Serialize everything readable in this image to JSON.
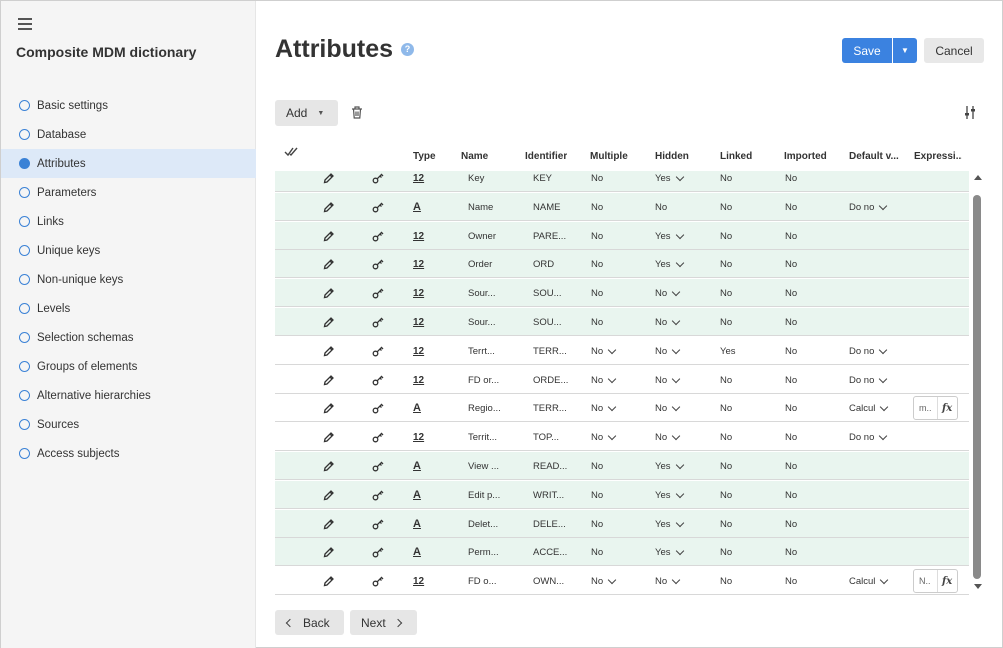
{
  "app": {
    "title": "Composite MDM dictionary"
  },
  "sidebar": {
    "items": [
      {
        "label": "Basic settings",
        "active": false
      },
      {
        "label": "Database",
        "active": false
      },
      {
        "label": "Attributes",
        "active": true
      },
      {
        "label": "Parameters",
        "active": false
      },
      {
        "label": "Links",
        "active": false
      },
      {
        "label": "Unique keys",
        "active": false
      },
      {
        "label": "Non-unique keys",
        "active": false
      },
      {
        "label": "Levels",
        "active": false
      },
      {
        "label": "Selection schemas",
        "active": false
      },
      {
        "label": "Groups of elements",
        "active": false
      },
      {
        "label": "Alternative hierarchies",
        "active": false
      },
      {
        "label": "Sources",
        "active": false
      },
      {
        "label": "Access subjects",
        "active": false
      }
    ]
  },
  "header": {
    "title": "Attributes",
    "help": "?",
    "save_label": "Save",
    "cancel_label": "Cancel"
  },
  "toolbar": {
    "add_label": "Add"
  },
  "grid": {
    "columns": [
      "Type",
      "Name",
      "Identifier",
      "Multiple",
      "Hidden",
      "Linked",
      "Imported",
      "Default v...",
      "Expressi..."
    ],
    "rows": [
      {
        "type": "12",
        "name": "Key",
        "id": "KEY",
        "multiple": "No",
        "multiple_dd": false,
        "hidden": "Yes",
        "hidden_dd": true,
        "linked": "No",
        "imported": "No",
        "def": "",
        "expr": "",
        "green": true
      },
      {
        "type": "A",
        "name": "Name",
        "id": "NAME",
        "multiple": "No",
        "multiple_dd": false,
        "hidden": "No",
        "hidden_dd": false,
        "linked": "No",
        "imported": "No",
        "def": "Do no",
        "expr": "",
        "green": true
      },
      {
        "type": "12",
        "name": "Owner",
        "id": "PARE...",
        "multiple": "No",
        "multiple_dd": false,
        "hidden": "Yes",
        "hidden_dd": true,
        "linked": "No",
        "imported": "No",
        "def": "",
        "expr": "",
        "green": true
      },
      {
        "type": "12",
        "name": "Order",
        "id": "ORD",
        "multiple": "No",
        "multiple_dd": false,
        "hidden": "Yes",
        "hidden_dd": true,
        "linked": "No",
        "imported": "No",
        "def": "",
        "expr": "",
        "green": true
      },
      {
        "type": "12",
        "name": "Sour...",
        "id": "SOU...",
        "multiple": "No",
        "multiple_dd": false,
        "hidden": "No",
        "hidden_dd": true,
        "linked": "No",
        "imported": "No",
        "def": "",
        "expr": "",
        "green": true
      },
      {
        "type": "12",
        "name": "Sour...",
        "id": "SOU...",
        "multiple": "No",
        "multiple_dd": false,
        "hidden": "No",
        "hidden_dd": true,
        "linked": "No",
        "imported": "No",
        "def": "",
        "expr": "",
        "green": true
      },
      {
        "type": "12",
        "name": "Terrt...",
        "id": "TERR...",
        "multiple": "No",
        "multiple_dd": true,
        "hidden": "No",
        "hidden_dd": true,
        "linked": "Yes",
        "imported": "No",
        "def": "Do no",
        "expr": "",
        "green": false
      },
      {
        "type": "12",
        "name": "FD or...",
        "id": "ORDE...",
        "multiple": "No",
        "multiple_dd": true,
        "hidden": "No",
        "hidden_dd": true,
        "linked": "No",
        "imported": "No",
        "def": "Do no",
        "expr": "",
        "green": false
      },
      {
        "type": "A",
        "name": "Regio...",
        "id": "TERR...",
        "multiple": "No",
        "multiple_dd": true,
        "hidden": "No",
        "hidden_dd": true,
        "linked": "No",
        "imported": "No",
        "def": "Calcul",
        "expr": "m..",
        "green": false
      },
      {
        "type": "12",
        "name": "Territ...",
        "id": "TOP...",
        "multiple": "No",
        "multiple_dd": true,
        "hidden": "No",
        "hidden_dd": true,
        "linked": "No",
        "imported": "No",
        "def": "Do no",
        "expr": "",
        "green": false
      },
      {
        "type": "A",
        "name": "View ...",
        "id": "READ...",
        "multiple": "No",
        "multiple_dd": false,
        "hidden": "Yes",
        "hidden_dd": true,
        "linked": "No",
        "imported": "No",
        "def": "",
        "expr": "",
        "green": true
      },
      {
        "type": "A",
        "name": "Edit p...",
        "id": "WRIT...",
        "multiple": "No",
        "multiple_dd": false,
        "hidden": "Yes",
        "hidden_dd": true,
        "linked": "No",
        "imported": "No",
        "def": "",
        "expr": "",
        "green": true
      },
      {
        "type": "A",
        "name": "Delet...",
        "id": "DELE...",
        "multiple": "No",
        "multiple_dd": false,
        "hidden": "Yes",
        "hidden_dd": true,
        "linked": "No",
        "imported": "No",
        "def": "",
        "expr": "",
        "green": true
      },
      {
        "type": "A",
        "name": "Perm...",
        "id": "ACCE...",
        "multiple": "No",
        "multiple_dd": false,
        "hidden": "Yes",
        "hidden_dd": true,
        "linked": "No",
        "imported": "No",
        "def": "",
        "expr": "",
        "green": true
      },
      {
        "type": "12",
        "name": "FD o...",
        "id": "OWN...",
        "multiple": "No",
        "multiple_dd": true,
        "hidden": "No",
        "hidden_dd": true,
        "linked": "No",
        "imported": "No",
        "def": "Calcul",
        "expr": "N..",
        "green": false
      }
    ]
  },
  "expression_fx": "fx",
  "footer": {
    "back_label": "Back",
    "next_label": "Next"
  }
}
